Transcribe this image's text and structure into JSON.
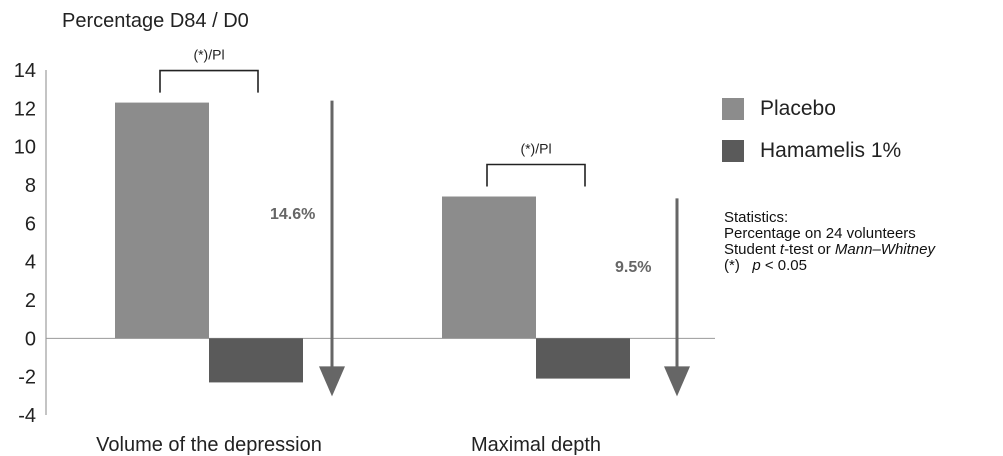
{
  "chart_data": {
    "type": "bar",
    "ylabel": "Percentage D84 / D0",
    "ylim": [
      -4,
      14
    ],
    "yticks": [
      14,
      12,
      10,
      8,
      6,
      4,
      2,
      0,
      -2,
      -4
    ],
    "categories": [
      "Volume of the depression",
      "Maximal depth"
    ],
    "series": [
      {
        "name": "Placebo",
        "values": [
          12.3,
          7.4
        ],
        "color": "#8c8c8c"
      },
      {
        "name": "Hamamelis 1%",
        "values": [
          -2.3,
          -2.1
        ],
        "color": "#5a5a5a"
      }
    ],
    "significance_labels": [
      "(*)/Pl",
      "(*)/Pl"
    ],
    "reduction_labels": [
      "14.6%",
      "9.5%"
    ],
    "arrow_ranges": [
      [
        12.4,
        -2.3
      ],
      [
        7.3,
        -2.3
      ]
    ],
    "arrow_color": "#666666",
    "grid": false,
    "legend_position": "right"
  },
  "statistics": {
    "title": "Statistics:",
    "line1": "Percentage on 24 volunteers",
    "line2_prefix": "Student ",
    "line2_italic1": "t",
    "line2_mid": "-test or ",
    "line2_italic2": "Mann–Whitney",
    "line3_prefix": "(*)   ",
    "line3_italic": "p",
    "line3_suffix": " < 0.05"
  }
}
